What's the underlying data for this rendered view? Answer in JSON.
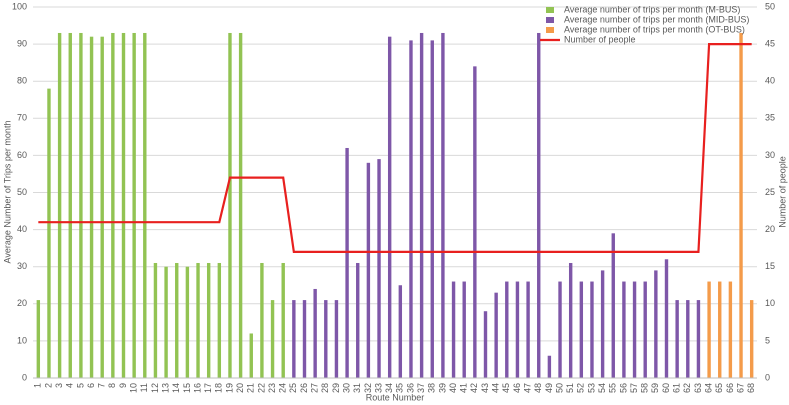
{
  "chart_data": {
    "type": "bar",
    "x_label": "Route Number",
    "y_label": "Average Number of Trips per month",
    "y2_label": "Number of people",
    "categories": [
      "1",
      "2",
      "3",
      "4",
      "5",
      "6",
      "7",
      "8",
      "9",
      "10",
      "11",
      "12",
      "13",
      "14",
      "15",
      "16",
      "17",
      "18",
      "19",
      "20",
      "21",
      "22",
      "23",
      "24",
      "25",
      "26",
      "27",
      "28",
      "29",
      "30",
      "31",
      "32",
      "33",
      "34",
      "35",
      "36",
      "37",
      "38",
      "39",
      "40",
      "41",
      "42",
      "43",
      "44",
      "45",
      "46",
      "47",
      "48",
      "49",
      "50",
      "51",
      "52",
      "53",
      "54",
      "55",
      "56",
      "57",
      "58",
      "59",
      "60",
      "61",
      "62",
      "63",
      "64",
      "65",
      "66",
      "67",
      "68"
    ],
    "series": [
      {
        "name": "Average number of trips per month (M-BUS)",
        "color": "#92c353",
        "values": [
          21,
          78,
          93,
          93,
          93,
          92,
          92,
          93,
          93,
          93,
          93,
          31,
          30,
          31,
          30,
          31,
          31,
          31,
          93,
          93,
          12,
          31,
          21,
          31,
          null,
          null,
          null,
          null,
          null,
          null,
          null,
          null,
          null,
          null,
          null,
          null,
          null,
          null,
          null,
          null,
          null,
          null,
          null,
          null,
          null,
          null,
          null,
          null,
          null,
          null,
          null,
          null,
          null,
          null,
          null,
          null,
          null,
          null,
          null,
          null,
          null,
          null,
          null,
          null,
          null,
          null,
          null,
          null
        ]
      },
      {
        "name": "Average number of trips per month (MID-BUS)",
        "color": "#7e57a8",
        "values": [
          null,
          null,
          null,
          null,
          null,
          null,
          null,
          null,
          null,
          null,
          null,
          null,
          null,
          null,
          null,
          null,
          null,
          null,
          null,
          null,
          null,
          null,
          null,
          null,
          21,
          21,
          24,
          21,
          21,
          62,
          31,
          58,
          59,
          92,
          25,
          91,
          93,
          91,
          93,
          26,
          26,
          84,
          18,
          23,
          26,
          26,
          26,
          93,
          6,
          26,
          31,
          26,
          26,
          29,
          39,
          26,
          26,
          26,
          29,
          32,
          21,
          21,
          21,
          null,
          null,
          null,
          null,
          null
        ]
      },
      {
        "name": "Average number of trips per month (OT-BUS)",
        "color": "#f49b4a",
        "values": [
          null,
          null,
          null,
          null,
          null,
          null,
          null,
          null,
          null,
          null,
          null,
          null,
          null,
          null,
          null,
          null,
          null,
          null,
          null,
          null,
          null,
          null,
          null,
          null,
          null,
          null,
          null,
          null,
          null,
          null,
          null,
          null,
          null,
          null,
          null,
          null,
          null,
          null,
          null,
          null,
          null,
          null,
          null,
          null,
          null,
          null,
          null,
          null,
          null,
          null,
          null,
          null,
          null,
          null,
          null,
          null,
          null,
          null,
          null,
          null,
          null,
          null,
          null,
          26,
          26,
          26,
          93,
          21
        ]
      },
      {
        "name": "Number of people",
        "type": "line",
        "axis": "y2",
        "color": "#e8201f",
        "values": [
          21,
          21,
          21,
          21,
          21,
          21,
          21,
          21,
          21,
          21,
          21,
          21,
          21,
          21,
          21,
          21,
          21,
          21,
          27,
          27,
          27,
          27,
          27,
          27,
          17,
          17,
          17,
          17,
          17,
          17,
          17,
          17,
          17,
          17,
          17,
          17,
          17,
          17,
          17,
          17,
          17,
          17,
          17,
          17,
          17,
          17,
          17,
          17,
          17,
          17,
          17,
          17,
          17,
          17,
          17,
          17,
          17,
          17,
          17,
          17,
          17,
          17,
          17,
          45,
          45,
          45,
          45,
          45
        ]
      }
    ],
    "ylim": [
      0,
      100
    ],
    "yticks": [
      0,
      10,
      20,
      30,
      40,
      50,
      60,
      70,
      80,
      90,
      100
    ],
    "y2lim": [
      0,
      50
    ],
    "y2ticks": [
      0,
      5,
      10,
      15,
      20,
      25,
      30,
      35,
      40,
      45,
      50
    ],
    "grid": true,
    "legend": "top-right"
  }
}
